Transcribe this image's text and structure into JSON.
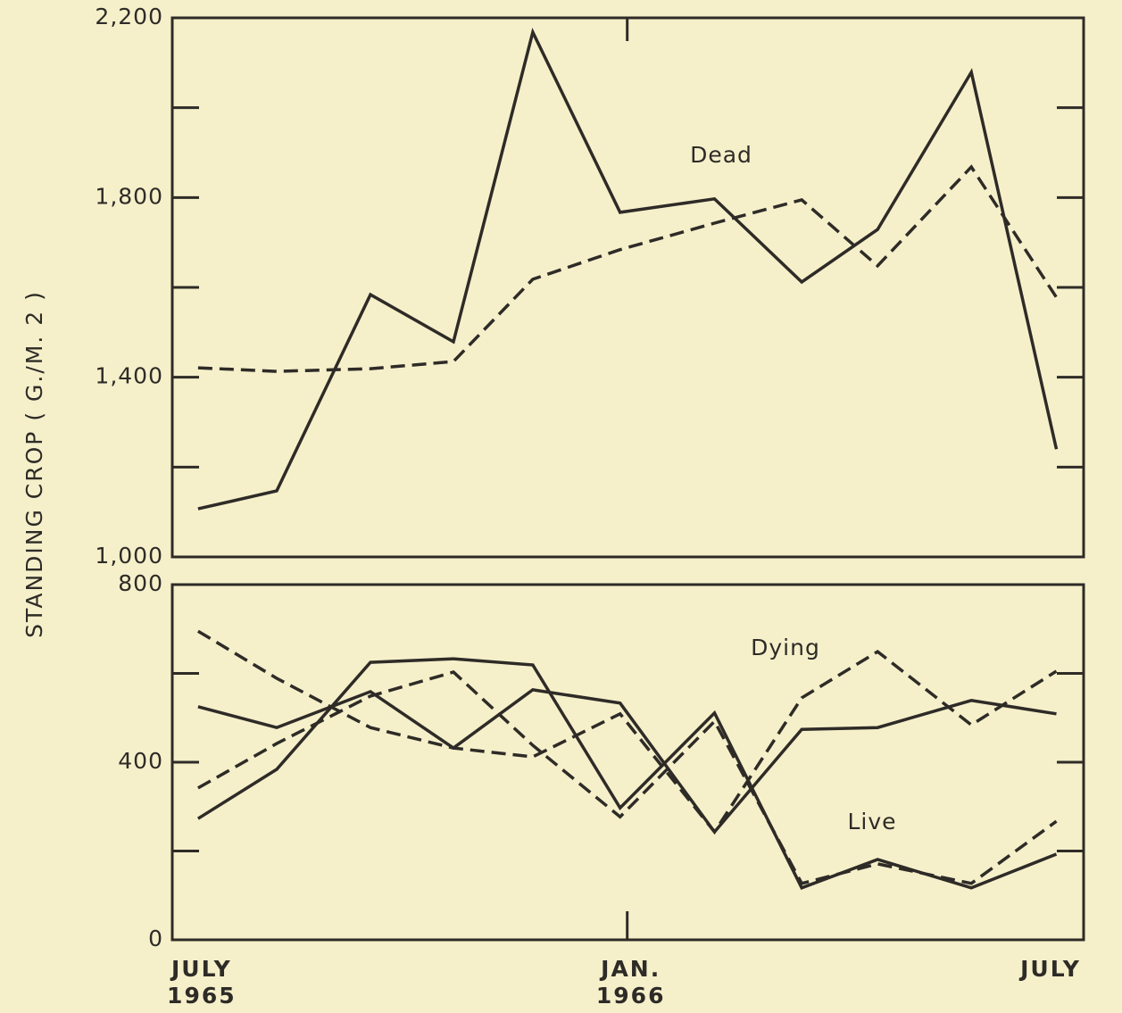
{
  "chart_data": [
    {
      "type": "line",
      "ylabel": "STANDING CROP ( G./M. 2 )",
      "x": [
        0,
        1.1,
        2.41,
        3.57,
        4.68,
        5.9,
        7.22,
        8.44,
        9.5,
        10.81,
        12.0
      ],
      "xlim": [
        -0.36,
        12.38
      ],
      "ylim": [
        1000,
        2200
      ],
      "yticks": [
        {
          "value": 1000,
          "label": "1,000"
        },
        {
          "value": 1400,
          "label": "1,400"
        },
        {
          "value": 1800,
          "label": "1,800"
        },
        {
          "value": 2200,
          "label": "2,200"
        }
      ],
      "yminor_ticks": [
        1200,
        1600,
        2000
      ],
      "color": "#2e2b27",
      "annotations": [
        "Dead"
      ],
      "series": [
        {
          "style": "solid",
          "values": [
            1107,
            1147,
            1584,
            1479,
            2168,
            1767,
            1797,
            1612,
            1729,
            2079,
            1240
          ]
        },
        {
          "style": "dashed",
          "values": [
            1421,
            1413,
            1419,
            1435,
            1618,
            1684,
            1743,
            1795,
            1648,
            1868,
            1578
          ]
        }
      ]
    },
    {
      "type": "line",
      "x": [
        0,
        1.1,
        2.41,
        3.57,
        4.68,
        5.9,
        7.22,
        8.44,
        9.5,
        10.81,
        12.0
      ],
      "xlim": [
        -0.36,
        12.38
      ],
      "xticks": [
        {
          "value": 0,
          "label": "JULY\n1965"
        },
        {
          "value": 6,
          "label": "JAN.\n1966"
        },
        {
          "value": 12,
          "label": "JULY"
        }
      ],
      "ylim": [
        0,
        800
      ],
      "yticks": [
        0,
        400,
        800
      ],
      "yminor_ticks": [
        200,
        600
      ],
      "color": "#2e2b27",
      "annotations": [
        "Dying",
        "Live"
      ],
      "series": [
        {
          "style": "solid",
          "values": [
            525,
            478,
            559,
            432,
            563,
            533,
            243,
            474,
            478,
            539,
            509
          ]
        },
        {
          "style": "dashed",
          "values": [
            695,
            589,
            478,
            432,
            412,
            509,
            243,
            545,
            649,
            484,
            605
          ]
        },
        {
          "style": "solid",
          "values": [
            273,
            384,
            625,
            633,
            619,
            297,
            511,
            117,
            181,
            117,
            193
          ]
        },
        {
          "style": "dashed",
          "values": [
            342,
            442,
            549,
            603,
            438,
            277,
            492,
            127,
            171,
            127,
            267
          ]
        }
      ]
    }
  ]
}
